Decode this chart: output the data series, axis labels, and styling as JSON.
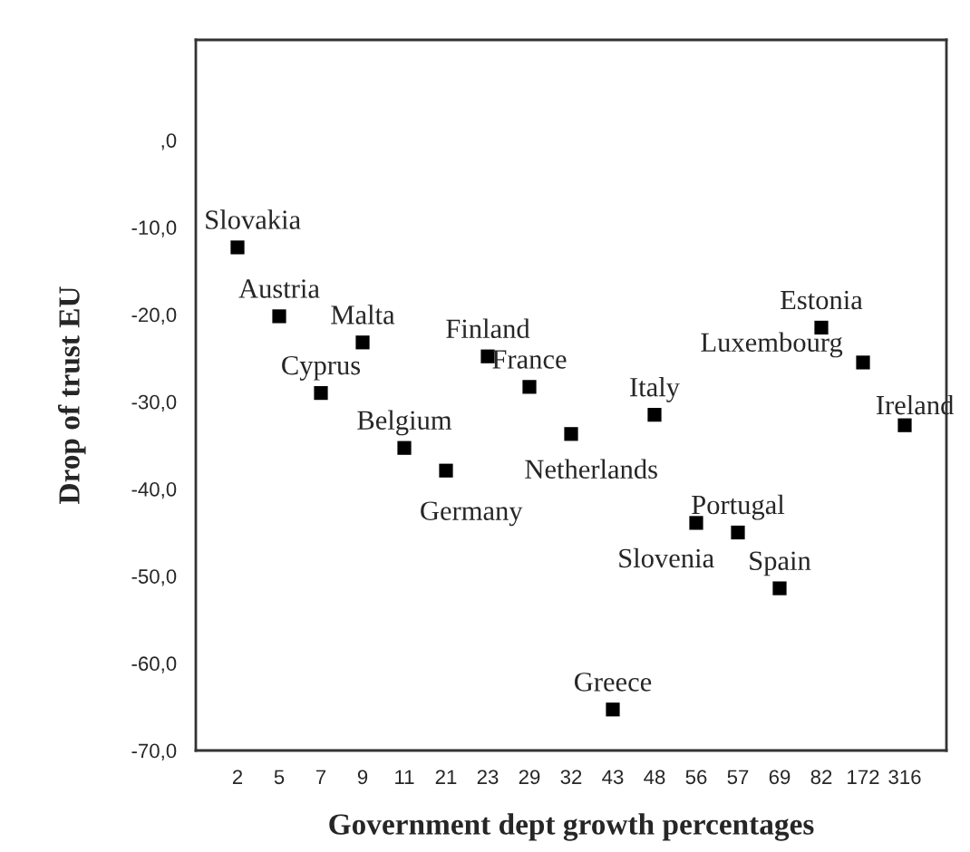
{
  "chart_data": {
    "type": "scatter",
    "xlabel": "Government dept growth percentages",
    "ylabel": "Drop of trust EU",
    "categories": [
      "2",
      "5",
      "7",
      "9",
      "11",
      "21",
      "23",
      "29",
      "32",
      "43",
      "48",
      "56",
      "57",
      "69",
      "82",
      "172",
      "316"
    ],
    "series": [
      {
        "color": "#000000",
        "values": [
          -12.3,
          -20.2,
          -29.0,
          -23.2,
          -35.3,
          -37.9,
          -24.8,
          -28.3,
          -33.7,
          -65.3,
          -31.5,
          -43.9,
          -45.0,
          -51.4,
          -21.5,
          -25.5,
          -32.7
        ]
      }
    ],
    "ylim": [
      -70,
      11.5
    ],
    "yticks": [
      {
        "value": -70,
        "label": "-70,0"
      },
      {
        "value": -60,
        "label": "-60,0"
      },
      {
        "value": -50,
        "label": "-50,0"
      },
      {
        "value": -40,
        "label": "-40,0"
      },
      {
        "value": -30,
        "label": "-30,0"
      },
      {
        "value": -20,
        "label": "-20,0"
      },
      {
        "value": -10,
        "label": "-10,0"
      },
      {
        "value": 0,
        "label": ",0"
      }
    ],
    "marker": "square",
    "grid": false,
    "legend": false,
    "annotations": [
      {
        "text": "Slovakia",
        "x": "2",
        "y": -12.3
      },
      {
        "text": "Austria",
        "x": "5",
        "y": -20.2
      },
      {
        "text": "Cyprus",
        "x": "7",
        "y": -29.0
      },
      {
        "text": "Malta",
        "x": "9",
        "y": -23.2
      },
      {
        "text": "Belgium",
        "x": "11",
        "y": -35.3
      },
      {
        "text": "Germany",
        "x": "21",
        "y": -37.9
      },
      {
        "text": "Finland",
        "x": "23",
        "y": -24.8
      },
      {
        "text": "France",
        "x": "29",
        "y": -28.3
      },
      {
        "text": "Netherlands",
        "x": "32",
        "y": -33.7
      },
      {
        "text": "Greece",
        "x": "43",
        "y": -65.3
      },
      {
        "text": "Italy",
        "x": "48",
        "y": -31.5
      },
      {
        "text": "Slovenia",
        "x": "56",
        "y": -43.9
      },
      {
        "text": "Portugal",
        "x": "57",
        "y": -45.0
      },
      {
        "text": "Spain",
        "x": "69",
        "y": -51.4
      },
      {
        "text": "Estonia",
        "x": "82",
        "y": -21.5
      },
      {
        "text": "Luxembourg",
        "x": "172",
        "y": -25.5
      },
      {
        "text": "Ireland",
        "x": "316",
        "y": -32.7
      }
    ]
  }
}
